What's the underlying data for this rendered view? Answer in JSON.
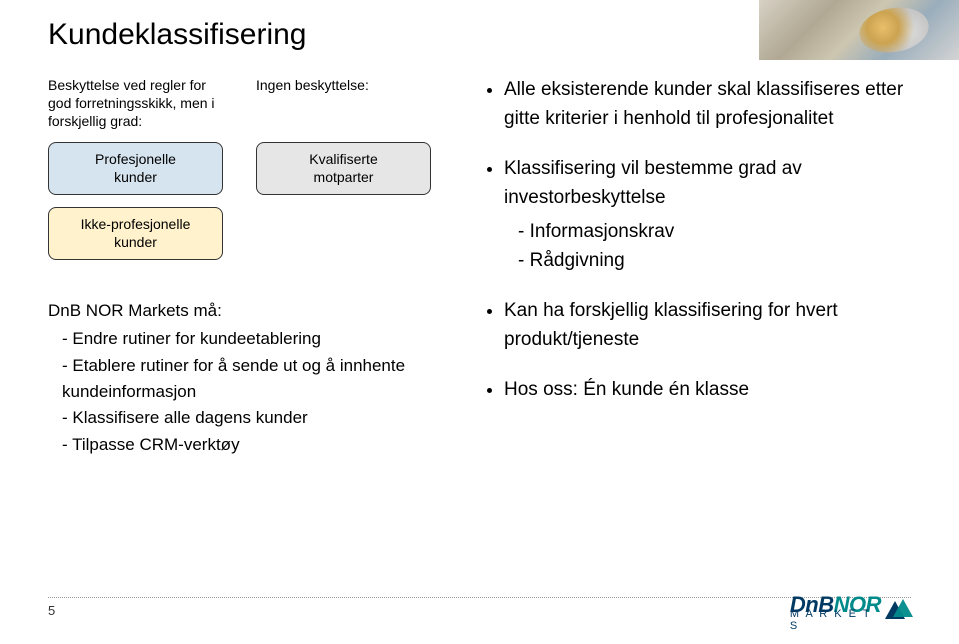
{
  "title": "Kundeklassifisering",
  "diagram": {
    "left_caption": "Beskyttelse ved regler for god forretningsskikk, men i forskjellig grad:",
    "right_caption": "Ingen beskyttelse:",
    "box_prof": "Profesjonelle\nkunder",
    "box_nonprof": "Ikke-profesjonelle\nkunder",
    "box_qual": "Kvalifiserte\nmotparter"
  },
  "markets": {
    "lead": "DnB NOR Markets må:",
    "items": [
      "Endre rutiner for kundeetablering",
      "Etablere rutiner for å sende ut og å innhente kundeinformasjon",
      "Klassifisere alle dagens kunder",
      "Tilpasse CRM-verktøy"
    ]
  },
  "bullets": [
    {
      "text": "Alle eksisterende kunder skal klassifiseres etter gitte kriterier i henhold til profesjonalitet"
    },
    {
      "text": "Klassifisering vil bestemme grad av investorbeskyttelse",
      "sub": [
        "Informasjonskrav",
        "Rådgivning"
      ]
    },
    {
      "text": "Kan ha forskjellig klassifisering for hvert produkt/tjeneste"
    },
    {
      "text": "Hos oss: Én kunde én klasse"
    }
  ],
  "footer": {
    "page": "5",
    "logo_dnb": "DnB",
    "logo_nor": "NOR",
    "logo_sub": "M A R K E T S"
  },
  "colors": {
    "box_blue": "#d6e4ef",
    "box_yellow": "#fff2cc",
    "box_grey": "#e6e6e6",
    "logo_blue": "#003a63",
    "logo_teal": "#008a8a"
  }
}
